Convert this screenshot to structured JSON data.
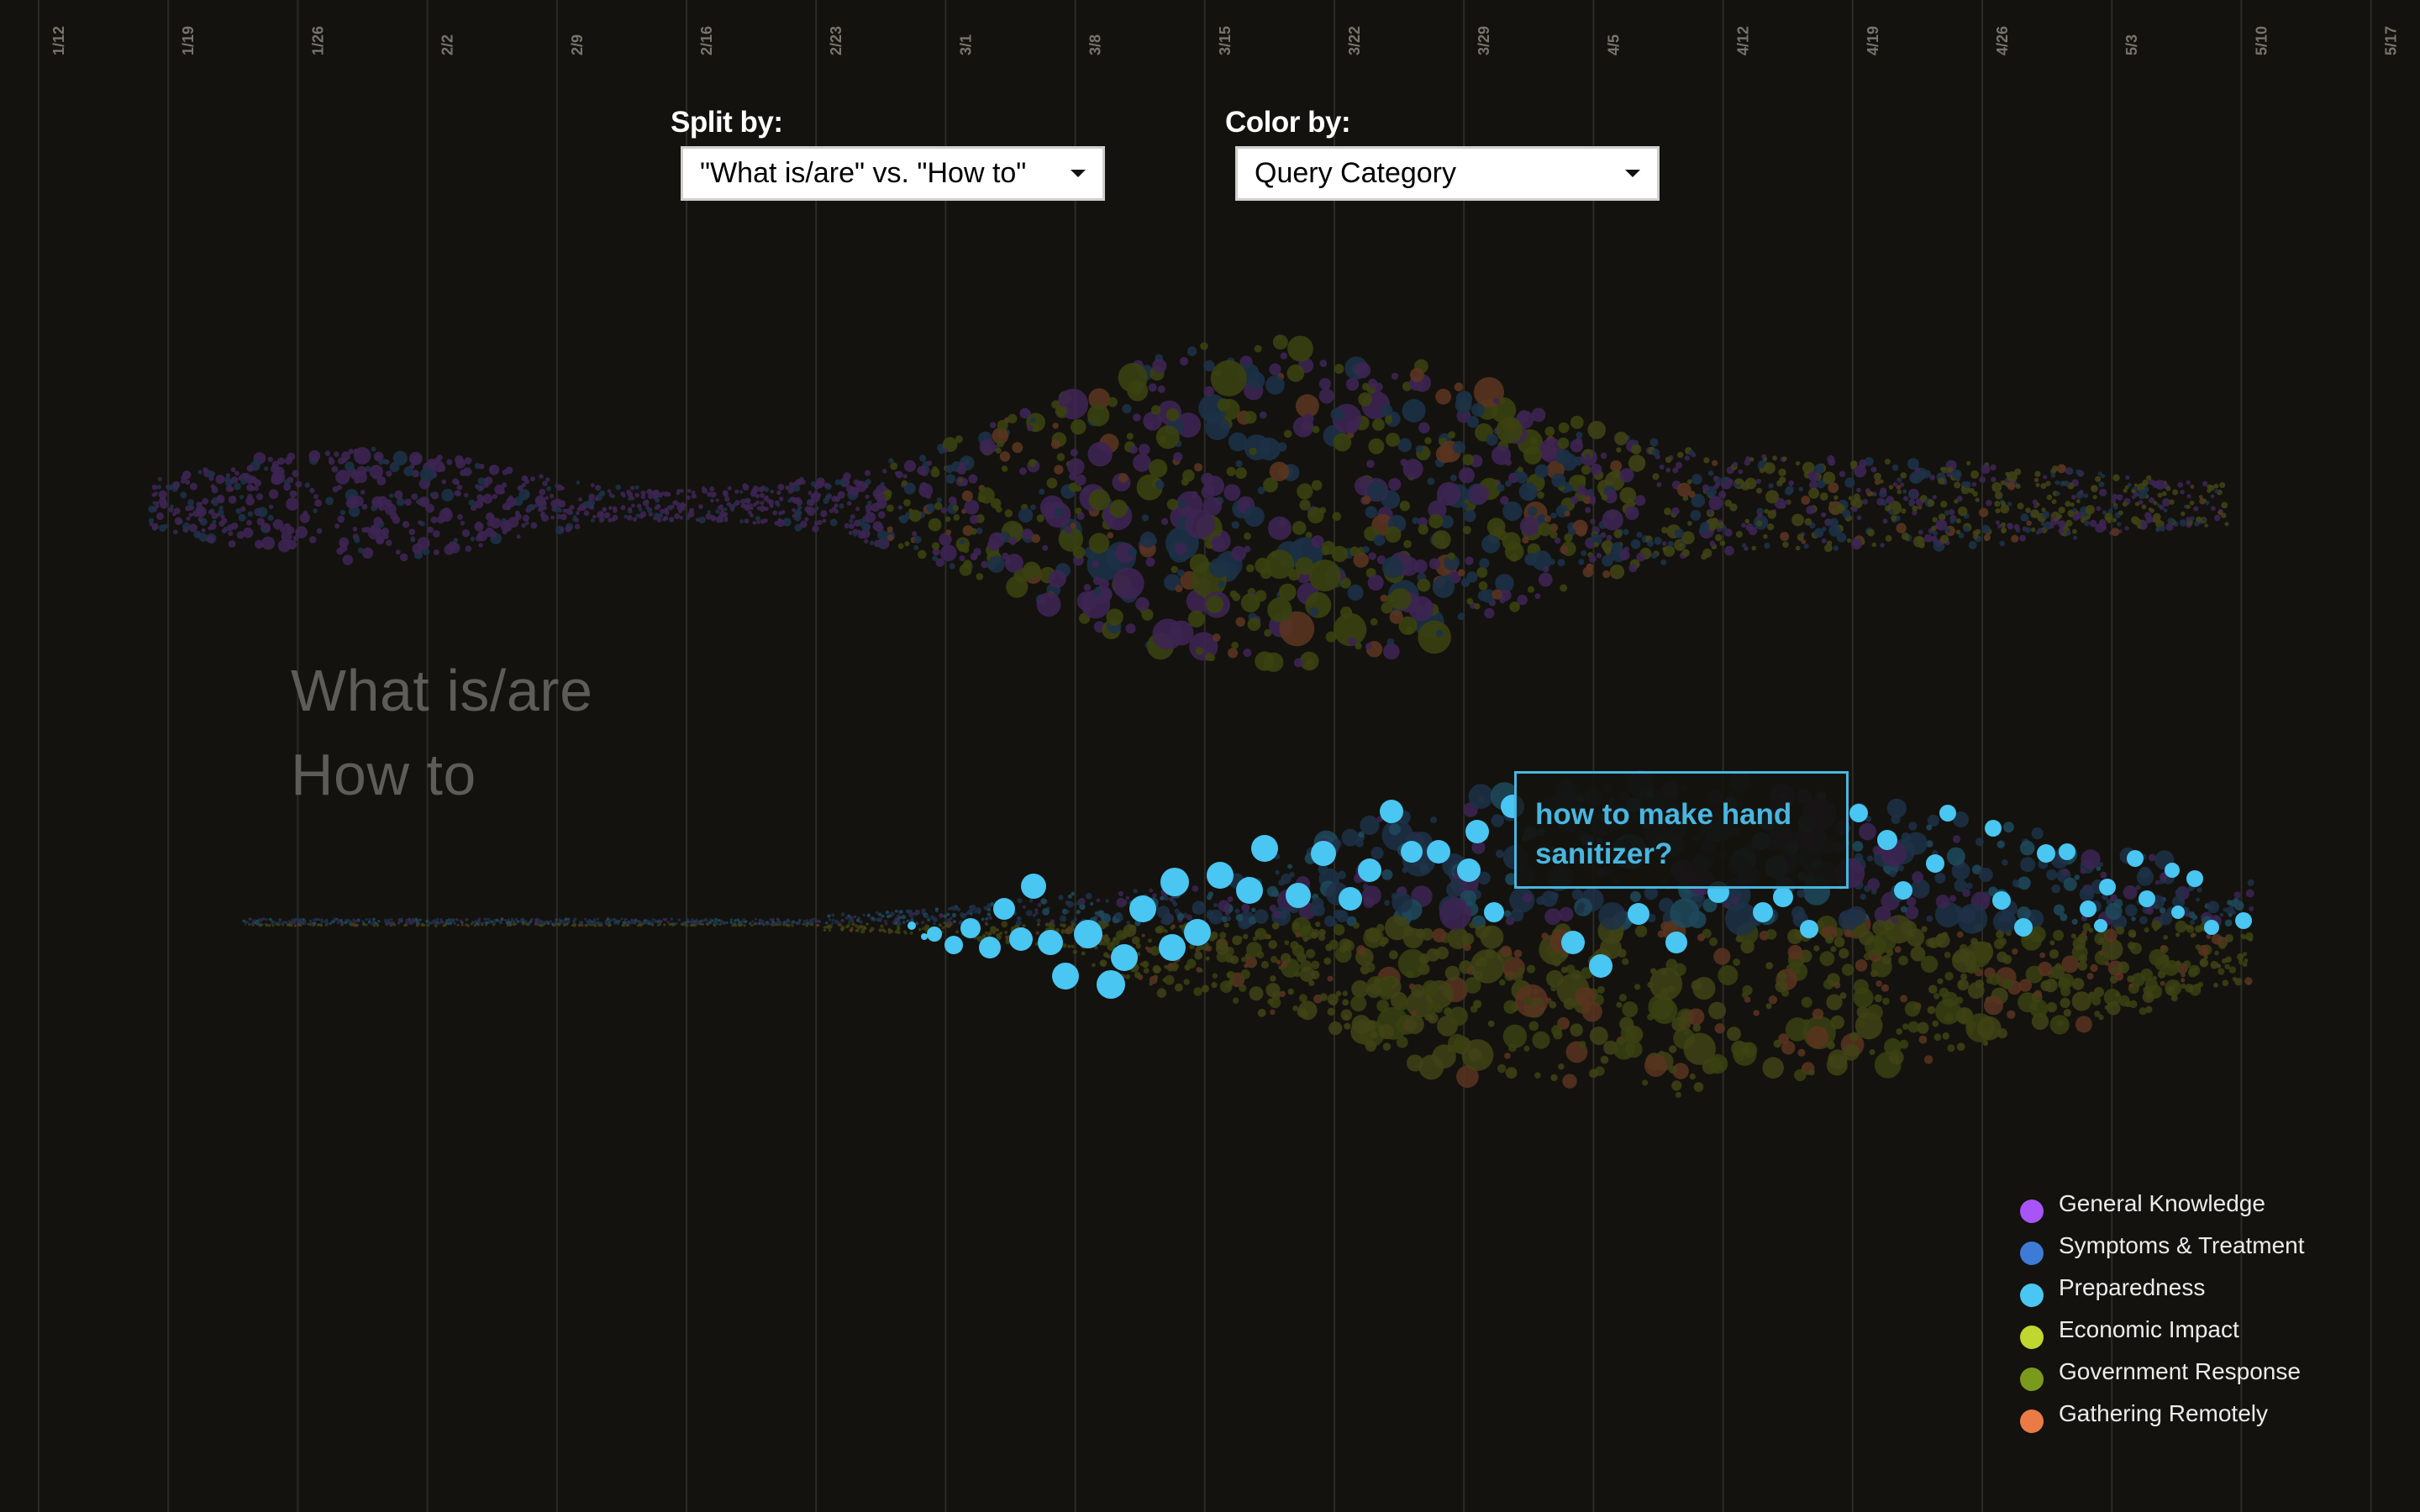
{
  "timeline": {
    "dates": [
      "1/12",
      "1/19",
      "1/26",
      "2/2",
      "2/9",
      "2/16",
      "2/23",
      "3/1",
      "3/8",
      "3/15",
      "3/22",
      "3/29",
      "4/5",
      "4/12",
      "4/19",
      "4/26",
      "5/3",
      "5/10",
      "5/17"
    ]
  },
  "controls": {
    "split": {
      "label": "Split by:",
      "value": "\"What is/are\" vs. \"How to\""
    },
    "color": {
      "label": "Color by:",
      "value": "Query Category"
    }
  },
  "groups": {
    "top_label": "What is/are",
    "bottom_label": "How to"
  },
  "tooltip": {
    "text": "how to make hand sanitizer?"
  },
  "legend": {
    "items": [
      {
        "label": "General Knowledge",
        "color": "#a855f7"
      },
      {
        "label": "Symptoms & Treatment",
        "color": "#3d7bd6"
      },
      {
        "label": "Preparedness",
        "color": "#49c6f2"
      },
      {
        "label": "Economic Impact",
        "color": "#bfd72e"
      },
      {
        "label": "Government Response",
        "color": "#7a9a1e"
      },
      {
        "label": "Gathering Remotely",
        "color": "#ea7b45"
      }
    ]
  },
  "highlighted_category": "Preparedness"
}
